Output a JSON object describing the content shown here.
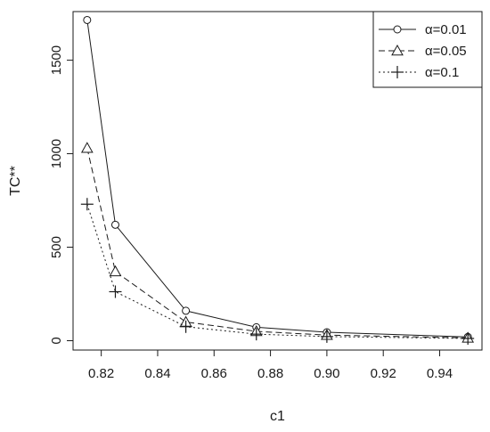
{
  "chart_data": {
    "type": "line",
    "xlabel": "c1",
    "ylabel": "TC**",
    "x": [
      0.815,
      0.825,
      0.85,
      0.875,
      0.9,
      0.95
    ],
    "xlim": [
      0.81,
      0.955
    ],
    "ylim": [
      -50,
      1760
    ],
    "xticks": [
      0.82,
      0.84,
      0.86,
      0.88,
      0.9,
      0.92,
      0.94
    ],
    "xtick_labels": [
      "0.82",
      "0.84",
      "0.86",
      "0.88",
      "0.90",
      "0.92",
      "0.94"
    ],
    "yticks": [
      0,
      500,
      1000,
      1500
    ],
    "ytick_labels": [
      "0",
      "500",
      "1000",
      "1500"
    ],
    "grid": false,
    "legend_position": "top-right",
    "series": [
      {
        "name": "α=0.01",
        "values": [
          1715,
          620,
          160,
          72,
          45,
          20
        ],
        "line": "solid",
        "marker": "circle"
      },
      {
        "name": "α=0.05",
        "values": [
          1030,
          370,
          100,
          50,
          30,
          15
        ],
        "line": "dashed",
        "marker": "triangle"
      },
      {
        "name": "α=0.1",
        "values": [
          730,
          262,
          75,
          35,
          22,
          12
        ],
        "line": "dotted",
        "marker": "plus"
      }
    ]
  }
}
